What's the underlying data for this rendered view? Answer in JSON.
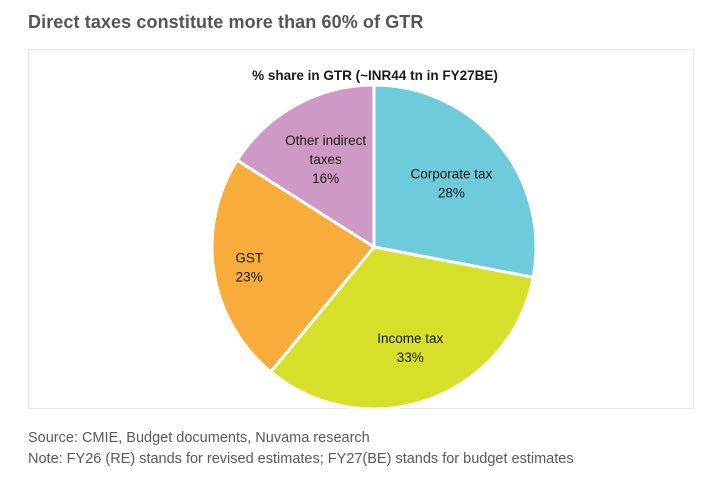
{
  "header": {
    "title": "Direct taxes constitute more than 60% of GTR"
  },
  "chart_data": {
    "type": "pie",
    "title": "% share in GTR (~INR44 tn in FY27BE)",
    "unit": "%",
    "start": "12 o'clock",
    "direction": "clockwise",
    "slices": [
      {
        "name": "Corporate tax",
        "label_lines": [
          "Corporate tax",
          "28%"
        ],
        "value": 28,
        "color": "#6ecbdc"
      },
      {
        "name": "Income tax",
        "label_lines": [
          "Income tax",
          "33%"
        ],
        "value": 33,
        "color": "#d6df2a"
      },
      {
        "name": "GST",
        "label_lines": [
          "GST",
          "23%"
        ],
        "value": 23,
        "color": "#f8ac3c"
      },
      {
        "name": "Other indirect taxes",
        "label_lines": [
          "Other indirect",
          "taxes",
          "16%"
        ],
        "value": 16,
        "color": "#cf99c6"
      }
    ]
  },
  "footer": {
    "source": "Source: CMIE, Budget documents, Nuvama research",
    "note": "Note: FY26 (RE) stands for revised estimates; FY27(BE) stands for budget estimates"
  }
}
